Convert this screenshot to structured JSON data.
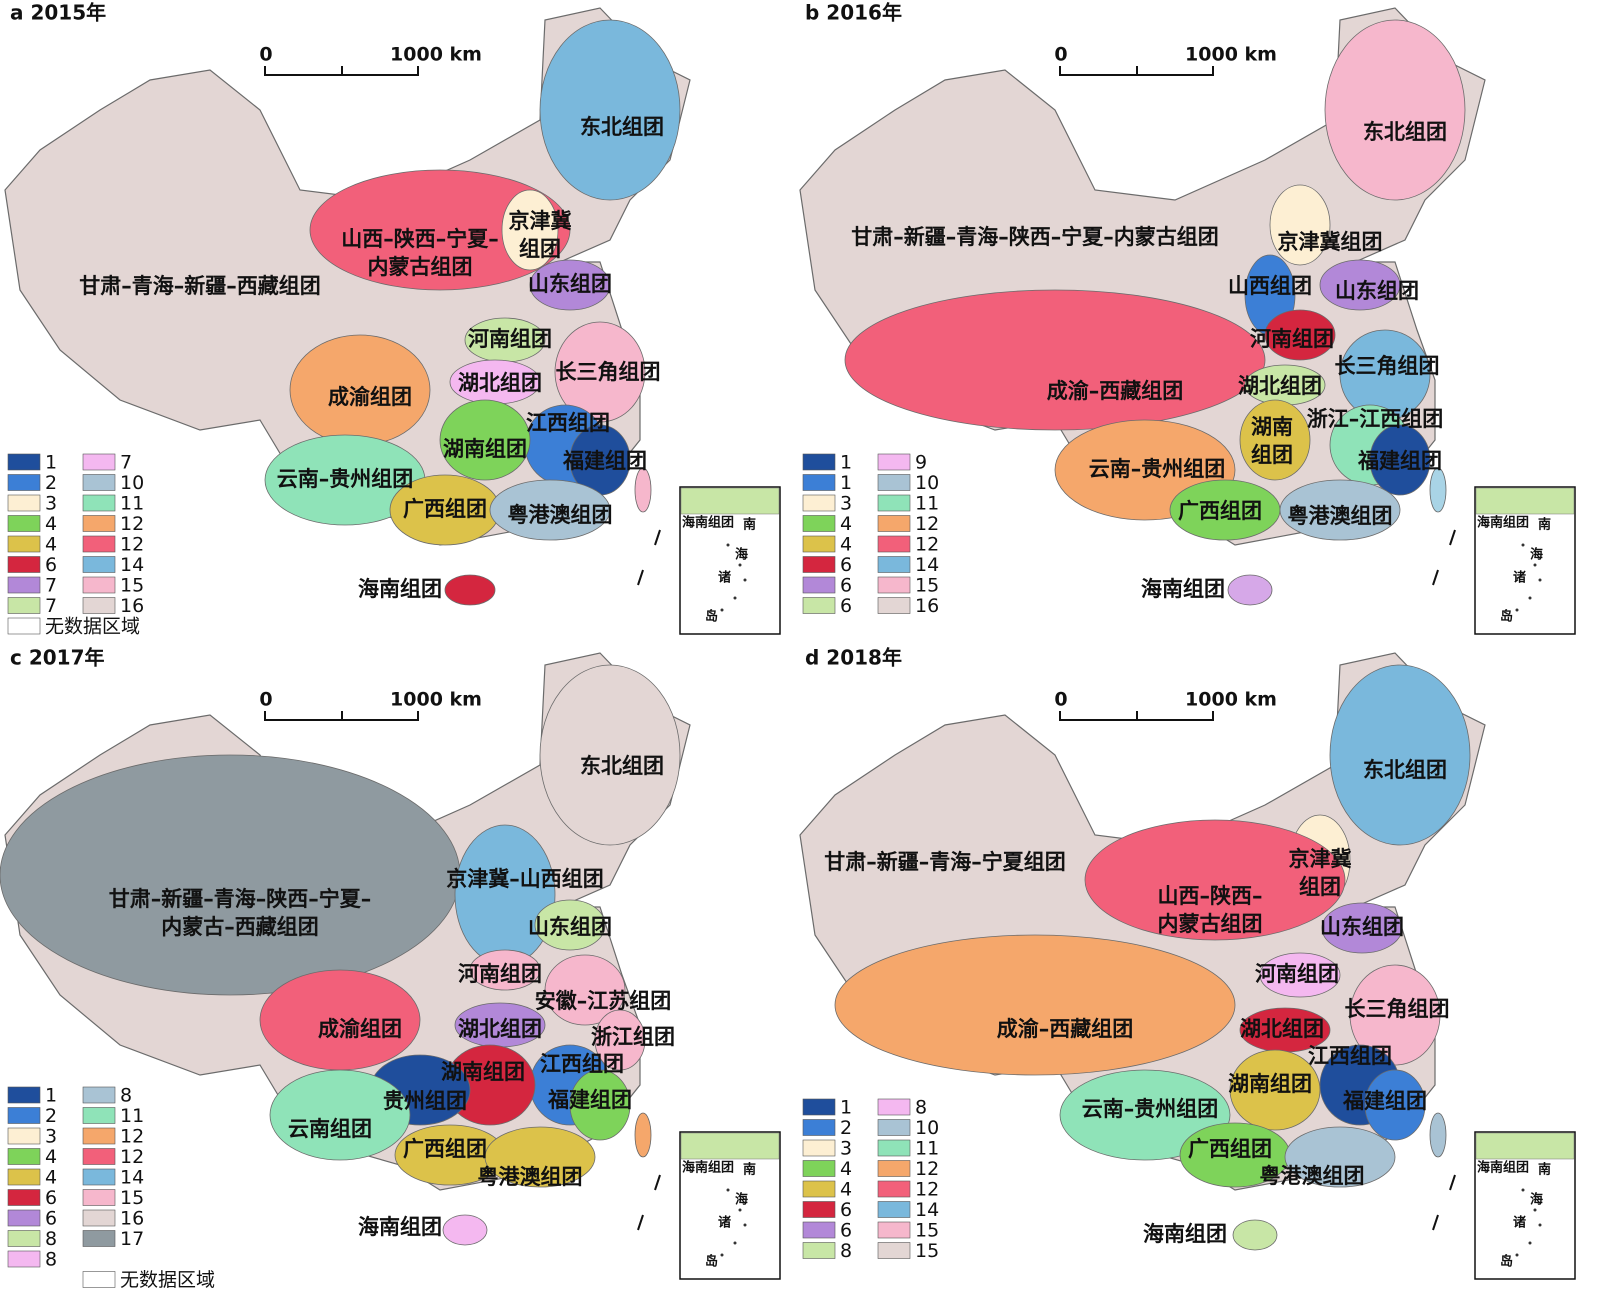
{
  "panels": [
    {
      "title": "a 2015年",
      "scale": [
        "0",
        "1000 km"
      ],
      "taiwan_color": "#f6b7cc",
      "inset_texts": [
        "海南组团",
        "南",
        "海",
        "诸",
        "岛"
      ],
      "regions": [
        {
          "label": [
            "东北组团"
          ],
          "color": "#7ab8dc"
        },
        {
          "label": [
            "山西–陕西–宁夏–",
            "内蒙古组团"
          ],
          "color": "#f2607a"
        },
        {
          "label": [
            "京津冀",
            "组团"
          ],
          "color": "#fdefd3"
        },
        {
          "label": [
            "甘肃–青海–新疆–西藏组团"
          ],
          "color": "#e3d6d4"
        },
        {
          "label": [
            "山东组团"
          ],
          "color": "#b288d8"
        },
        {
          "label": [
            "河南组团"
          ],
          "color": "#c8e6a6"
        },
        {
          "label": [
            "长三角组团"
          ],
          "color": "#f6b7cc"
        },
        {
          "label": [
            "湖北组团"
          ],
          "color": "#f4b8f0"
        },
        {
          "label": [
            "成渝组团"
          ],
          "color": "#f5a76b"
        },
        {
          "label": [
            "江西组团"
          ],
          "color": "#3c7fd6"
        },
        {
          "label": [
            "湖南组团"
          ],
          "color": "#7ed35a"
        },
        {
          "label": [
            "福建组团"
          ],
          "color": "#1f4e9c"
        },
        {
          "label": [
            "云南–贵州组团"
          ],
          "color": "#8fe3b8"
        },
        {
          "label": [
            "广西组团"
          ],
          "color": "#dcc24a"
        },
        {
          "label": [
            "粤港澳组团"
          ],
          "color": "#a9c3d4"
        },
        {
          "label": [
            "海南组团"
          ],
          "color": "#d4263f"
        }
      ],
      "legend": [
        [
          {
            "label": "1",
            "color": "#1f4e9c"
          },
          {
            "label": "2",
            "color": "#3c7fd6"
          },
          {
            "label": "3",
            "color": "#fdefd3"
          },
          {
            "label": "4",
            "color": "#7ed35a"
          },
          {
            "label": "4",
            "color": "#dcc24a"
          },
          {
            "label": "6",
            "color": "#d4263f"
          },
          {
            "label": "7",
            "color": "#b288d8"
          },
          {
            "label": "7",
            "color": "#c8e6a6"
          }
        ],
        [
          {
            "label": "7",
            "color": "#f4b8f0"
          },
          {
            "label": "10",
            "color": "#a9c3d4"
          },
          {
            "label": "11",
            "color": "#8fe3b8"
          },
          {
            "label": "12",
            "color": "#f5a76b"
          },
          {
            "label": "12",
            "color": "#f2607a"
          },
          {
            "label": "14",
            "color": "#7ab8dc"
          },
          {
            "label": "15",
            "color": "#f6b7cc"
          },
          {
            "label": "16",
            "color": "#e3d6d4"
          }
        ]
      ],
      "no_data": "无数据区域"
    },
    {
      "title": "b 2016年",
      "scale": [
        "0",
        "1000 km"
      ],
      "taiwan_color": "#a9d4e6",
      "inset_texts": [
        "海南组团",
        "南",
        "海",
        "诸",
        "岛"
      ],
      "regions": [
        {
          "label": [
            "东北组团"
          ],
          "color": "#f6b7cc"
        },
        {
          "label": [
            "甘肃–新疆–青海–陕西–宁夏–内蒙古组团"
          ],
          "color": "#e3d6d4"
        },
        {
          "label": [
            "京津冀组团"
          ],
          "color": "#fdefd3"
        },
        {
          "label": [
            "山西组团"
          ],
          "color": "#3c7fd6"
        },
        {
          "label": [
            "山东组团"
          ],
          "color": "#b288d8"
        },
        {
          "label": [
            "河南组团"
          ],
          "color": "#d4263f"
        },
        {
          "label": [
            "长三角组团"
          ],
          "color": "#7ab8dc"
        },
        {
          "label": [
            "成渝–西藏组团"
          ],
          "color": "#f2607a"
        },
        {
          "label": [
            "湖北组团"
          ],
          "color": "#c8e6a6"
        },
        {
          "label": [
            "浙江–江西组团"
          ],
          "color": "#8fe3b8"
        },
        {
          "label": [
            "湖南",
            "组团"
          ],
          "color": "#dcc24a"
        },
        {
          "label": [
            "福建组团"
          ],
          "color": "#1f4e9c"
        },
        {
          "label": [
            "云南–贵州组团"
          ],
          "color": "#f5a76b"
        },
        {
          "label": [
            "广西组团"
          ],
          "color": "#7ed35a"
        },
        {
          "label": [
            "粤港澳组团"
          ],
          "color": "#a9c3d4"
        },
        {
          "label": [
            "海南组团"
          ],
          "color": "#d6a8e8"
        }
      ],
      "legend": [
        [
          {
            "label": "1",
            "color": "#1f4e9c"
          },
          {
            "label": "1",
            "color": "#3c7fd6"
          },
          {
            "label": "3",
            "color": "#fdefd3"
          },
          {
            "label": "4",
            "color": "#7ed35a"
          },
          {
            "label": "4",
            "color": "#dcc24a"
          },
          {
            "label": "6",
            "color": "#d4263f"
          },
          {
            "label": "6",
            "color": "#b288d8"
          },
          {
            "label": "6",
            "color": "#c8e6a6"
          }
        ],
        [
          {
            "label": "9",
            "color": "#f4b8f0"
          },
          {
            "label": "10",
            "color": "#a9c3d4"
          },
          {
            "label": "11",
            "color": "#8fe3b8"
          },
          {
            "label": "12",
            "color": "#f5a76b"
          },
          {
            "label": "12",
            "color": "#f2607a"
          },
          {
            "label": "14",
            "color": "#7ab8dc"
          },
          {
            "label": "15",
            "color": "#f6b7cc"
          },
          {
            "label": "16",
            "color": "#e3d6d4"
          }
        ]
      ]
    },
    {
      "title": "c 2017年",
      "scale": [
        "0",
        "1000 km"
      ],
      "taiwan_color": "#f5a76b",
      "inset_texts": [
        "海南组团",
        "南",
        "海",
        "诸",
        "岛"
      ],
      "regions": [
        {
          "label": [
            "东北组团"
          ],
          "color": "#e3d6d4"
        },
        {
          "label": [
            "甘肃–新疆–青海–陕西–宁夏–",
            "内蒙古–西藏组团"
          ],
          "color": "#8f9aa0"
        },
        {
          "label": [
            "京津冀–山西组团"
          ],
          "color": "#7ab8dc"
        },
        {
          "label": [
            "山东组团"
          ],
          "color": "#c8e6a6"
        },
        {
          "label": [
            "河南组团"
          ],
          "color": "#f6b7cc"
        },
        {
          "label": [
            "安徽–江苏组团"
          ],
          "color": "#f6b7cc"
        },
        {
          "label": [
            "成渝组团"
          ],
          "color": "#f2607a"
        },
        {
          "label": [
            "湖北组团"
          ],
          "color": "#b288d8"
        },
        {
          "label": [
            "浙江组团"
          ],
          "color": "#f6b7cc"
        },
        {
          "label": [
            "江西组团"
          ],
          "color": "#3c7fd6"
        },
        {
          "label": [
            "湖南组团"
          ],
          "color": "#d4263f"
        },
        {
          "label": [
            "贵州组团"
          ],
          "color": "#1f4e9c"
        },
        {
          "label": [
            "福建组团"
          ],
          "color": "#7ed35a"
        },
        {
          "label": [
            "云南组团"
          ],
          "color": "#8fe3b8"
        },
        {
          "label": [
            "广西组团"
          ],
          "color": "#dcc24a"
        },
        {
          "label": [
            "粤港澳组团"
          ],
          "color": "#dcc24a"
        },
        {
          "label": [
            "海南组团"
          ],
          "color": "#f4b8f0"
        }
      ],
      "legend": [
        [
          {
            "label": "1",
            "color": "#1f4e9c"
          },
          {
            "label": "2",
            "color": "#3c7fd6"
          },
          {
            "label": "3",
            "color": "#fdefd3"
          },
          {
            "label": "4",
            "color": "#7ed35a"
          },
          {
            "label": "4",
            "color": "#dcc24a"
          },
          {
            "label": "6",
            "color": "#d4263f"
          },
          {
            "label": "6",
            "color": "#b288d8"
          },
          {
            "label": "8",
            "color": "#c8e6a6"
          },
          {
            "label": "8",
            "color": "#f4b8f0"
          }
        ],
        [
          {
            "label": "8",
            "color": "#a9c3d4"
          },
          {
            "label": "11",
            "color": "#8fe3b8"
          },
          {
            "label": "12",
            "color": "#f5a76b"
          },
          {
            "label": "12",
            "color": "#f2607a"
          },
          {
            "label": "14",
            "color": "#7ab8dc"
          },
          {
            "label": "15",
            "color": "#f6b7cc"
          },
          {
            "label": "16",
            "color": "#e3d6d4"
          },
          {
            "label": "17",
            "color": "#8f9aa0"
          }
        ]
      ],
      "no_data": "无数据区域"
    },
    {
      "title": "d 2018年",
      "scale": [
        "0",
        "1000 km"
      ],
      "taiwan_color": "#a9c3d4",
      "inset_texts": [
        "海南组团",
        "南",
        "海",
        "诸",
        "岛"
      ],
      "regions": [
        {
          "label": [
            "东北组团"
          ],
          "color": "#7ab8dc"
        },
        {
          "label": [
            "甘肃–新疆–青海–宁夏组团"
          ],
          "color": "#e3d6d4"
        },
        {
          "label": [
            "京津冀",
            "组团"
          ],
          "color": "#fdefd3"
        },
        {
          "label": [
            "山西–陕西–",
            "内蒙古组团"
          ],
          "color": "#f2607a"
        },
        {
          "label": [
            "山东组团"
          ],
          "color": "#b288d8"
        },
        {
          "label": [
            "河南组团"
          ],
          "color": "#f4b8f0"
        },
        {
          "label": [
            "长三角组团"
          ],
          "color": "#f6b7cc"
        },
        {
          "label": [
            "成渝–西藏组团"
          ],
          "color": "#f5a76b"
        },
        {
          "label": [
            "湖北组团"
          ],
          "color": "#d4263f"
        },
        {
          "label": [
            "江西组团"
          ],
          "color": "#1f4e9c"
        },
        {
          "label": [
            "湖南组团"
          ],
          "color": "#dcc24a"
        },
        {
          "label": [
            "福建组团"
          ],
          "color": "#3c7fd6"
        },
        {
          "label": [
            "云南–贵州组团"
          ],
          "color": "#8fe3b8"
        },
        {
          "label": [
            "广西组团"
          ],
          "color": "#7ed35a"
        },
        {
          "label": [
            "粤港澳组团"
          ],
          "color": "#a9c3d4"
        },
        {
          "label": [
            "海南组团"
          ],
          "color": "#c8e6a6"
        }
      ],
      "legend": [
        [
          {
            "label": "1",
            "color": "#1f4e9c"
          },
          {
            "label": "2",
            "color": "#3c7fd6"
          },
          {
            "label": "3",
            "color": "#fdefd3"
          },
          {
            "label": "4",
            "color": "#7ed35a"
          },
          {
            "label": "4",
            "color": "#dcc24a"
          },
          {
            "label": "6",
            "color": "#d4263f"
          },
          {
            "label": "6",
            "color": "#b288d8"
          },
          {
            "label": "8",
            "color": "#c8e6a6"
          }
        ],
        [
          {
            "label": "8",
            "color": "#f4b8f0"
          },
          {
            "label": "10",
            "color": "#a9c3d4"
          },
          {
            "label": "11",
            "color": "#8fe3b8"
          },
          {
            "label": "12",
            "color": "#f5a76b"
          },
          {
            "label": "12",
            "color": "#f2607a"
          },
          {
            "label": "14",
            "color": "#7ab8dc"
          },
          {
            "label": "15",
            "color": "#f6b7cc"
          },
          {
            "label": "15",
            "color": "#e3d6d4"
          }
        ]
      ]
    }
  ]
}
